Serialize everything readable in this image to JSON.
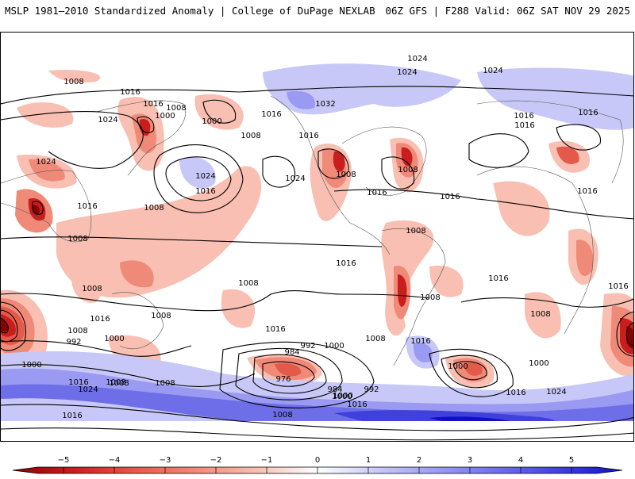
{
  "header": {
    "title": "MSLP 1981–2010 Standardized Anomaly | College of DuPage NEXLAB",
    "run_info": "06Z GFS | F288 Valid: 06Z SAT NOV 29 2025"
  },
  "colors": {
    "neg5": "#8b0000",
    "neg4": "#c81e1e",
    "neg3": "#e45a4a",
    "neg2": "#f08a78",
    "neg1": "#f8bfb2",
    "pos1": "#c8c8f8",
    "pos2": "#9a9af2",
    "pos3": "#6e6ee8",
    "pos4": "#4040dc",
    "pos5": "#1010c8",
    "land": "#ffffff",
    "contour": "#000000"
  },
  "isobar_labels": [
    "1008",
    "1016",
    "1016",
    "1008",
    "1000",
    "1000",
    "1008",
    "1016",
    "1032",
    "1024",
    "1024",
    "1024",
    "1024",
    "1016",
    "1016",
    "1016",
    "1024",
    "1016",
    "1016",
    "1024",
    "1008",
    "1008",
    "1016",
    "1008",
    "1008",
    "1016",
    "1016",
    "1008",
    "1008",
    "1024",
    "1016",
    "1016",
    "1008",
    "1016",
    "1016",
    "1016",
    "1016",
    "1008",
    "1016",
    "1008",
    "1008",
    "1000",
    "992",
    "1000",
    "1008",
    "1008",
    "1000",
    "1008",
    "1016",
    "1000",
    "984",
    "992",
    "1000",
    "976",
    "984",
    "992",
    "1000",
    "1016",
    "1016",
    "1024",
    "1008",
    "1024",
    "1008",
    "1000",
    "1016",
    "1008"
  ],
  "colorbar": {
    "ticks": [
      "−5",
      "−4",
      "−3",
      "−2",
      "−1",
      "0",
      "1",
      "2",
      "3",
      "4",
      "5"
    ]
  }
}
